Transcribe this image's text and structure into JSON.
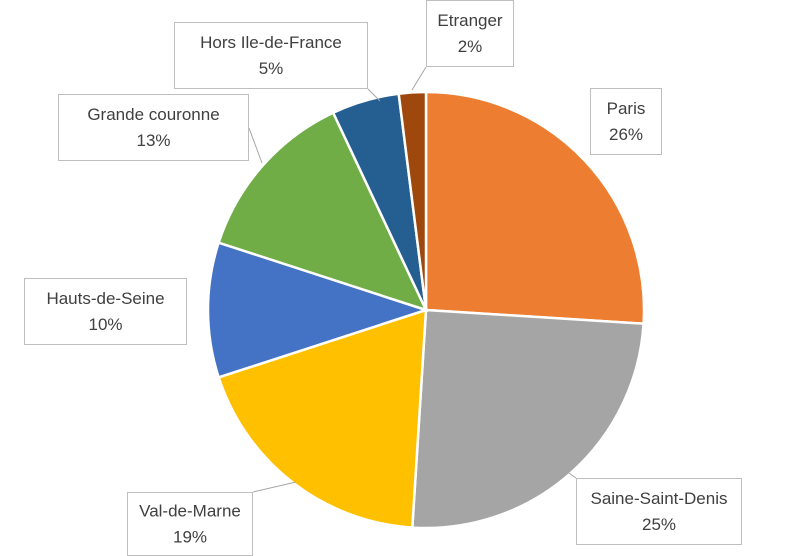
{
  "chart_data": {
    "type": "pie",
    "categories": [
      "Paris",
      "Saine-Saint-Denis",
      "Val-de-Marne",
      "Hauts-de-Seine",
      "Grande couronne",
      "Hors Ile-de-France",
      "Etranger"
    ],
    "values": [
      26,
      25,
      19,
      10,
      13,
      5,
      2
    ],
    "value_labels": [
      "26%",
      "25%",
      "19%",
      "10%",
      "13%",
      "5%",
      "2%"
    ],
    "colors": [
      "#ed7d31",
      "#a5a5a5",
      "#ffc000",
      "#4472c4",
      "#70ad47",
      "#255e91",
      "#9e480e"
    ]
  }
}
